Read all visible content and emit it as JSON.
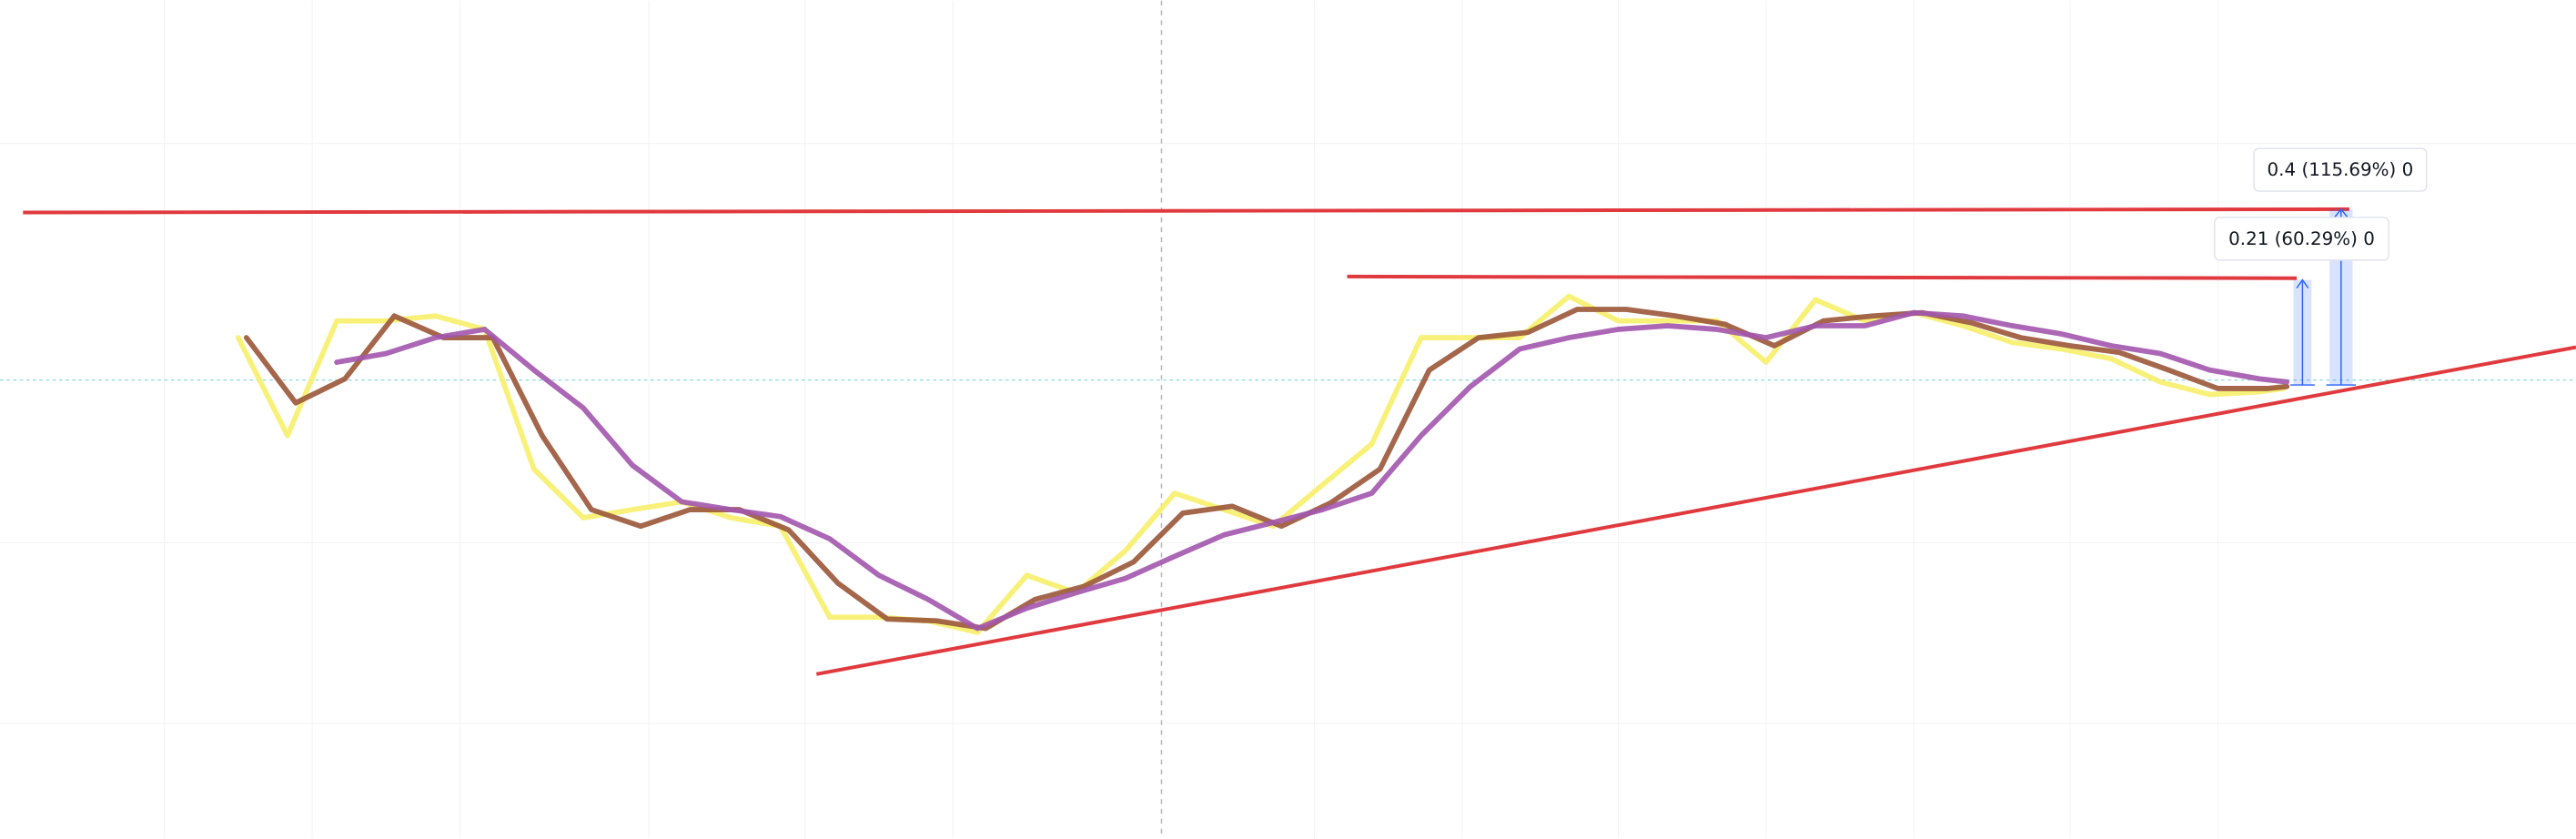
{
  "chart_data": {
    "type": "line",
    "log_scale": true,
    "xlim": [
      0,
      1568
    ],
    "ylim": [
      0.0455,
      1.905
    ],
    "annotations": [
      "0.4 (115.69%) 0",
      "0.21 (60.29%) 0"
    ],
    "series": [
      {
        "color": "#f7f06a",
        "x": [
          145,
          175,
          205,
          235,
          265,
          295,
          325,
          355,
          385,
          415,
          445,
          475,
          505,
          535,
          565,
          595,
          625,
          655,
          685,
          715,
          745,
          775,
          805,
          835,
          865,
          895,
          925,
          955,
          985,
          1015,
          1045,
          1075,
          1105,
          1135,
          1165,
          1195,
          1225,
          1255,
          1285,
          1315,
          1345,
          1375,
          1390
        ],
        "values": [
          0.424,
          0.274,
          0.457,
          0.457,
          0.467,
          0.44,
          0.236,
          0.19,
          0.197,
          0.204,
          0.19,
          0.183,
          0.122,
          0.122,
          0.12,
          0.114,
          0.147,
          0.136,
          0.164,
          0.212,
          0.197,
          0.183,
          0.22,
          0.264,
          0.424,
          0.424,
          0.424,
          0.51,
          0.457,
          0.457,
          0.457,
          0.38,
          0.502,
          0.457,
          0.474,
          0.447,
          0.415,
          0.403,
          0.386,
          0.348,
          0.329,
          0.333,
          0.338
        ]
      },
      {
        "color": "#9a5638",
        "x": [
          150,
          180,
          210,
          240,
          270,
          300,
          330,
          360,
          390,
          420,
          450,
          480,
          510,
          540,
          570,
          600,
          630,
          660,
          690,
          720,
          750,
          780,
          810,
          840,
          870,
          900,
          930,
          960,
          990,
          1020,
          1050,
          1080,
          1110,
          1140,
          1170,
          1200,
          1230,
          1260,
          1290,
          1320,
          1350,
          1380,
          1392
        ],
        "values": [
          0.424,
          0.317,
          0.353,
          0.467,
          0.424,
          0.424,
          0.274,
          0.197,
          0.183,
          0.197,
          0.197,
          0.18,
          0.142,
          0.121,
          0.12,
          0.116,
          0.132,
          0.14,
          0.156,
          0.194,
          0.2,
          0.183,
          0.203,
          0.236,
          0.367,
          0.424,
          0.434,
          0.481,
          0.481,
          0.467,
          0.45,
          0.409,
          0.457,
          0.467,
          0.474,
          0.453,
          0.424,
          0.409,
          0.397,
          0.367,
          0.338,
          0.338,
          0.341
        ]
      },
      {
        "color": "#a257ad",
        "x": [
          205,
          235,
          265,
          295,
          325,
          355,
          385,
          415,
          445,
          475,
          505,
          535,
          565,
          595,
          625,
          655,
          685,
          715,
          745,
          775,
          805,
          835,
          865,
          895,
          925,
          955,
          985,
          1015,
          1045,
          1075,
          1105,
          1135,
          1165,
          1195,
          1225,
          1255,
          1285,
          1315,
          1345,
          1375,
          1392
        ],
        "values": [
          0.38,
          0.395,
          0.424,
          0.44,
          0.367,
          0.31,
          0.24,
          0.204,
          0.197,
          0.191,
          0.173,
          0.147,
          0.132,
          0.116,
          0.127,
          0.136,
          0.145,
          0.16,
          0.176,
          0.186,
          0.197,
          0.212,
          0.274,
          0.341,
          0.403,
          0.424,
          0.44,
          0.447,
          0.44,
          0.424,
          0.447,
          0.447,
          0.474,
          0.467,
          0.447,
          0.431,
          0.409,
          0.395,
          0.367,
          0.353,
          0.348
        ]
      }
    ]
  }
}
